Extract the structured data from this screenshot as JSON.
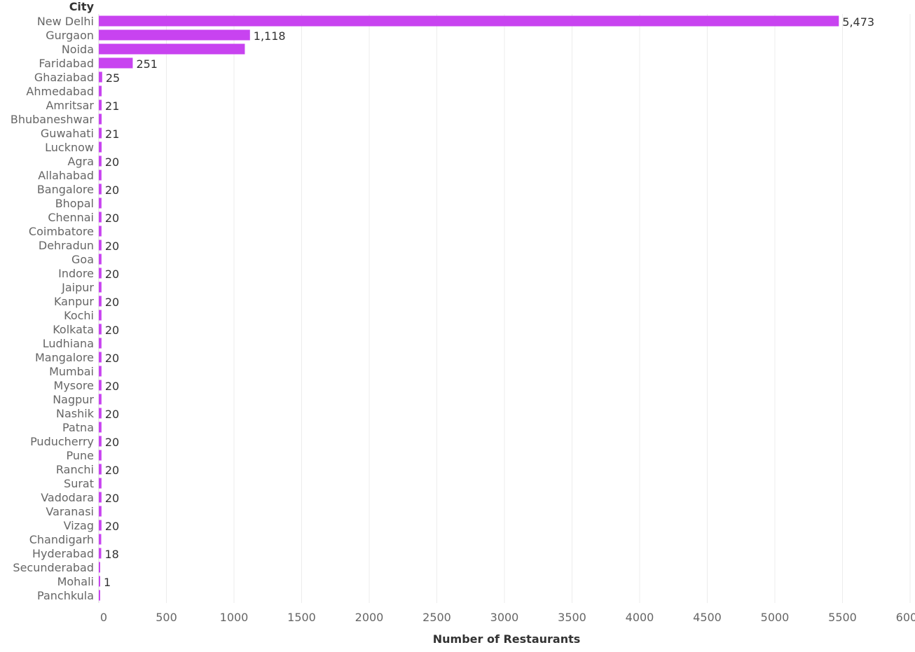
{
  "chart_data": {
    "type": "bar",
    "orientation": "horizontal",
    "title": "",
    "category_header": "City",
    "xlabel": "Number of Restaurants",
    "xlim": [
      0,
      6000
    ],
    "xticks": [
      0,
      500,
      1000,
      1500,
      2000,
      2500,
      3000,
      3500,
      4000,
      4500,
      5000,
      5500,
      6000
    ],
    "grid": true,
    "bar_color": "#C843F0",
    "categories": [
      "New Delhi",
      "Gurgaon",
      "Noida",
      "Faridabad",
      "Ghaziabad",
      "Ahmedabad",
      "Amritsar",
      "Bhubaneshwar",
      "Guwahati",
      "Lucknow",
      "Agra",
      "Allahabad",
      "Bangalore",
      "Bhopal",
      "Chennai",
      "Coimbatore",
      "Dehradun",
      "Goa",
      "Indore",
      "Jaipur",
      "Kanpur",
      "Kochi",
      "Kolkata",
      "Ludhiana",
      "Mangalore",
      "Mumbai",
      "Mysore",
      "Nagpur",
      "Nashik",
      "Patna",
      "Puducherry",
      "Pune",
      "Ranchi",
      "Surat",
      "Vadodara",
      "Varanasi",
      "Vizag",
      "Chandigarh",
      "Hyderabad",
      "Secunderabad",
      "Mohali",
      "Panchkula"
    ],
    "values": [
      5473,
      1118,
      1080,
      251,
      25,
      21,
      21,
      21,
      21,
      21,
      20,
      20,
      20,
      20,
      20,
      20,
      20,
      20,
      20,
      20,
      20,
      20,
      20,
      20,
      20,
      20,
      20,
      20,
      20,
      20,
      20,
      20,
      20,
      20,
      20,
      20,
      20,
      18,
      18,
      2,
      1,
      1
    ],
    "data_labels": [
      "5,473",
      "1,118",
      "",
      "251",
      "25",
      "",
      "21",
      "",
      "21",
      "",
      "20",
      "",
      "20",
      "",
      "20",
      "",
      "20",
      "",
      "20",
      "",
      "20",
      "",
      "20",
      "",
      "20",
      "",
      "20",
      "",
      "20",
      "",
      "20",
      "",
      "20",
      "",
      "20",
      "",
      "20",
      "",
      "18",
      "",
      "1",
      ""
    ]
  }
}
